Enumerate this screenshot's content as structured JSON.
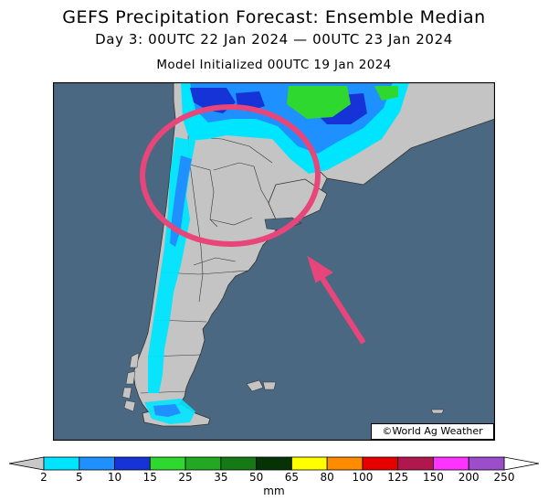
{
  "title": "GEFS Precipitation Forecast: Ensemble Median",
  "subtitle": "Day 3: 00UTC 22 Jan 2024 — 00UTC 23 Jan 2024",
  "init_line": "Model Initialized 00UTC 19 Jan 2024",
  "copyright": "©World Ag Weather",
  "colors": {
    "ocean": "#4a6882",
    "land": "#c4c4c4",
    "highlight": "#e8457a",
    "precip_light": "#00e5ff",
    "precip_mid": "#1e90ff",
    "precip_dark": "#1533d6",
    "precip_green": "#2ed82e"
  },
  "legend": {
    "unit": "mm",
    "colors": [
      "#00e5ff",
      "#1e90ff",
      "#1533d6",
      "#2ed82e",
      "#22a822",
      "#157a15",
      "#053305",
      "#ffff00",
      "#ff8c00",
      "#e60000",
      "#b0174d",
      "#ff33ff",
      "#9b4dca"
    ],
    "labels": [
      "2",
      "5",
      "10",
      "15",
      "25",
      "35",
      "50",
      "65",
      "80",
      "100",
      "125",
      "150",
      "200",
      "250"
    ]
  }
}
